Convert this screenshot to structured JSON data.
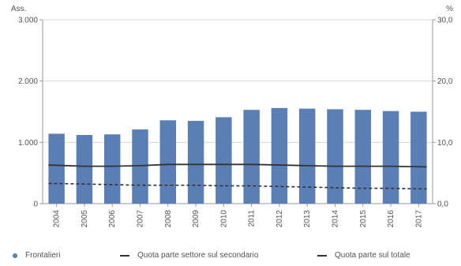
{
  "chart_data": {
    "type": "bar",
    "left_axis_label": "Ass.",
    "right_axis_label": "%",
    "categories": [
      "2004",
      "2005",
      "2006",
      "2007",
      "2008",
      "2009",
      "2010",
      "2011",
      "2012",
      "2013",
      "2014",
      "2015",
      "2016",
      "2017"
    ],
    "left_ylim": [
      0,
      3000
    ],
    "left_ticks": [
      "0",
      "1.000",
      "2.000",
      "3.000"
    ],
    "left_tick_values": [
      0,
      1000,
      2000,
      3000
    ],
    "right_ylim": [
      0,
      30
    ],
    "right_ticks": [
      "0,0",
      "10,0",
      "20,0",
      "30,0"
    ],
    "right_tick_values": [
      0,
      10,
      20,
      30
    ],
    "grid": true,
    "legend_position": "bottom",
    "series": [
      {
        "name": "Frontalieri",
        "kind": "bar",
        "axis": "left",
        "color": "#5b7fb5",
        "values": [
          1140,
          1120,
          1130,
          1210,
          1360,
          1350,
          1410,
          1530,
          1560,
          1550,
          1540,
          1530,
          1510,
          1500
        ]
      },
      {
        "name": "Quota parte settore sul secondario",
        "kind": "line",
        "axis": "right",
        "color": "#333333",
        "dash": "solid",
        "values": [
          6.3,
          6.1,
          6.1,
          6.2,
          6.4,
          6.4,
          6.4,
          6.4,
          6.3,
          6.2,
          6.1,
          6.1,
          6.1,
          6.0
        ]
      },
      {
        "name": "Quota parte sul totale",
        "kind": "line",
        "axis": "right",
        "color": "#333333",
        "dash": "dashed",
        "values": [
          3.3,
          3.2,
          3.1,
          3.0,
          3.0,
          3.0,
          2.9,
          2.9,
          2.8,
          2.7,
          2.6,
          2.5,
          2.5,
          2.4
        ]
      }
    ]
  }
}
